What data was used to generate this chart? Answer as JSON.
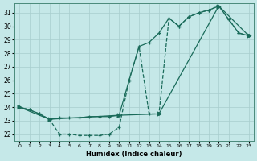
{
  "xlabel": "Humidex (Indice chaleur)",
  "bg_color": "#c5e8e8",
  "grid_color": "#a8cece",
  "line_color": "#1a6b5a",
  "xlim": [
    -0.5,
    23.5
  ],
  "ylim": [
    21.5,
    31.7
  ],
  "xticks": [
    0,
    1,
    2,
    3,
    4,
    5,
    6,
    7,
    8,
    9,
    10,
    11,
    12,
    13,
    14,
    15,
    16,
    17,
    18,
    19,
    20,
    21,
    22,
    23
  ],
  "yticks": [
    22,
    23,
    24,
    25,
    26,
    27,
    28,
    29,
    30,
    31
  ],
  "series": [
    {
      "x": [
        0,
        1,
        2,
        3,
        4,
        5,
        6,
        7,
        8,
        9,
        10,
        11,
        12,
        13,
        14,
        15,
        16,
        17,
        18,
        19,
        20,
        21,
        22,
        23
      ],
      "y": [
        24.0,
        23.8,
        23.5,
        23.1,
        22.0,
        22.0,
        21.9,
        21.9,
        21.9,
        22.0,
        22.5,
        26.0,
        28.5,
        23.5,
        23.5,
        30.6,
        30.0,
        30.7,
        31.0,
        31.2,
        31.5,
        30.5,
        29.5,
        29.3
      ],
      "marker": "+",
      "linestyle": "--"
    },
    {
      "x": [
        0,
        1,
        2,
        3,
        4,
        5,
        6,
        7,
        8,
        9,
        10,
        11,
        12,
        13,
        14,
        15,
        16,
        17,
        18,
        19,
        20,
        21,
        22,
        23
      ],
      "y": [
        24.0,
        23.8,
        23.5,
        23.1,
        23.2,
        23.2,
        23.2,
        23.3,
        23.3,
        23.3,
        23.4,
        26.0,
        28.5,
        28.8,
        29.5,
        30.6,
        30.0,
        30.7,
        31.0,
        31.2,
        31.5,
        30.5,
        29.5,
        29.3
      ],
      "marker": "+",
      "linestyle": "-"
    },
    {
      "x": [
        0,
        3,
        10,
        14,
        20,
        23
      ],
      "y": [
        24.0,
        23.1,
        23.4,
        23.5,
        31.5,
        29.3
      ],
      "marker": ">",
      "linestyle": "-"
    }
  ]
}
